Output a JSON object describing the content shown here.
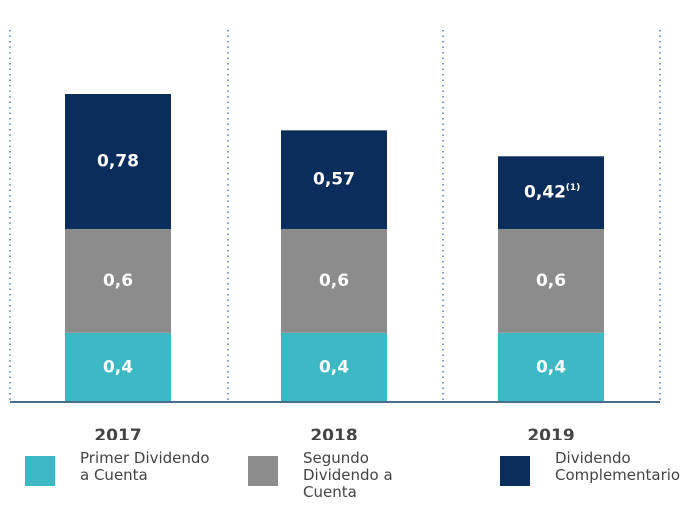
{
  "chart_data": {
    "type": "stacked_bar",
    "categories": [
      "2017",
      "2018",
      "2019"
    ],
    "series": [
      {
        "name": "Primer Dividendo a Cuenta",
        "color": "#3cb9c5",
        "values": [
          0.4,
          0.4,
          0.4
        ],
        "value_labels": [
          "0,4",
          "0,4",
          "0,4"
        ]
      },
      {
        "name": "Segundo Dividendo a Cuenta",
        "color": "#8c8c8c",
        "values": [
          0.6,
          0.6,
          0.6
        ],
        "value_labels": [
          "0,6",
          "0,6",
          "0,6"
        ]
      },
      {
        "name": "Dividendo Complementario",
        "color": "#0b2d5b",
        "values": [
          0.78,
          0.57,
          0.42
        ],
        "value_labels": [
          "0,78",
          "0,57",
          "0,42"
        ]
      }
    ],
    "annotation": "(1)",
    "ylim": [
      0,
      2.15
    ]
  }
}
